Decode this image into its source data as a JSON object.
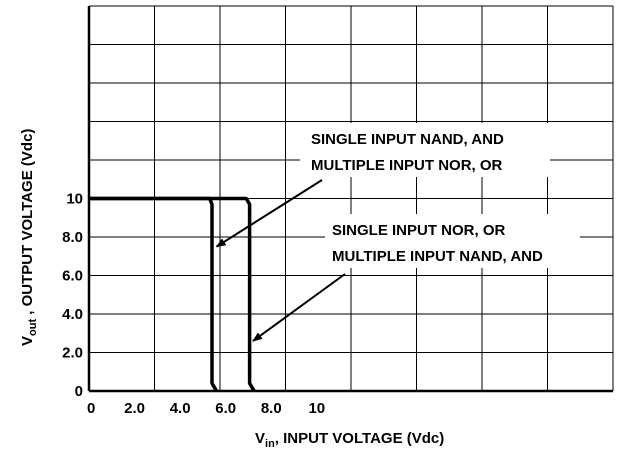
{
  "chart_data": {
    "type": "line",
    "x_axis": {
      "label_main": "V",
      "label_sub": "in",
      "label_rest": ", INPUT VOLTAGE (Vdc)",
      "range": [
        0,
        23
      ],
      "ticks": [
        {
          "value": 0,
          "label": "0"
        },
        {
          "value": 2,
          "label": "2.0"
        },
        {
          "value": 4,
          "label": "4.0"
        },
        {
          "value": 6,
          "label": "6.0"
        },
        {
          "value": 8,
          "label": "8.0"
        },
        {
          "value": 10,
          "label": "10"
        }
      ],
      "grid": [
        0,
        2.875,
        5.75,
        8.625,
        11.5,
        14.375,
        17.25,
        20.125,
        23
      ]
    },
    "y_axis": {
      "label_main": "V",
      "label_sub": "out",
      "label_rest": " ,  OUTPUT VOLTAGE (Vdc)",
      "range": [
        0,
        20
      ],
      "ticks": [
        {
          "value": 0,
          "label": "0"
        },
        {
          "value": 2,
          "label": "2.0"
        },
        {
          "value": 4,
          "label": "4.0"
        },
        {
          "value": 6,
          "label": "6.0"
        },
        {
          "value": 8,
          "label": "8.0"
        },
        {
          "value": 10,
          "label": "10"
        }
      ],
      "grid": [
        0,
        2,
        4,
        6,
        8,
        10,
        12,
        14,
        16,
        18,
        20
      ]
    },
    "grid": true,
    "series": [
      {
        "points": [
          [
            0,
            10
          ],
          [
            5.3,
            10
          ],
          [
            5.4,
            9.7
          ],
          [
            5.4,
            0.4
          ],
          [
            5.6,
            0
          ]
        ]
      },
      {
        "points": [
          [
            0,
            10
          ],
          [
            6.9,
            10
          ],
          [
            7.05,
            9.7
          ],
          [
            7.05,
            0.4
          ],
          [
            7.25,
            0
          ]
        ]
      }
    ],
    "annotations": [
      {
        "lines": [
          "SINGLE INPUT NAND, AND",
          "MULTIPLE INPUT NOR, OR"
        ],
        "arrow_target": [
          5.6,
          7.5
        ]
      },
      {
        "lines": [
          "SINGLE INPUT NOR, OR",
          "MULTIPLE INPUT NAND, AND"
        ],
        "arrow_target": [
          7.2,
          2.6
        ]
      }
    ]
  }
}
